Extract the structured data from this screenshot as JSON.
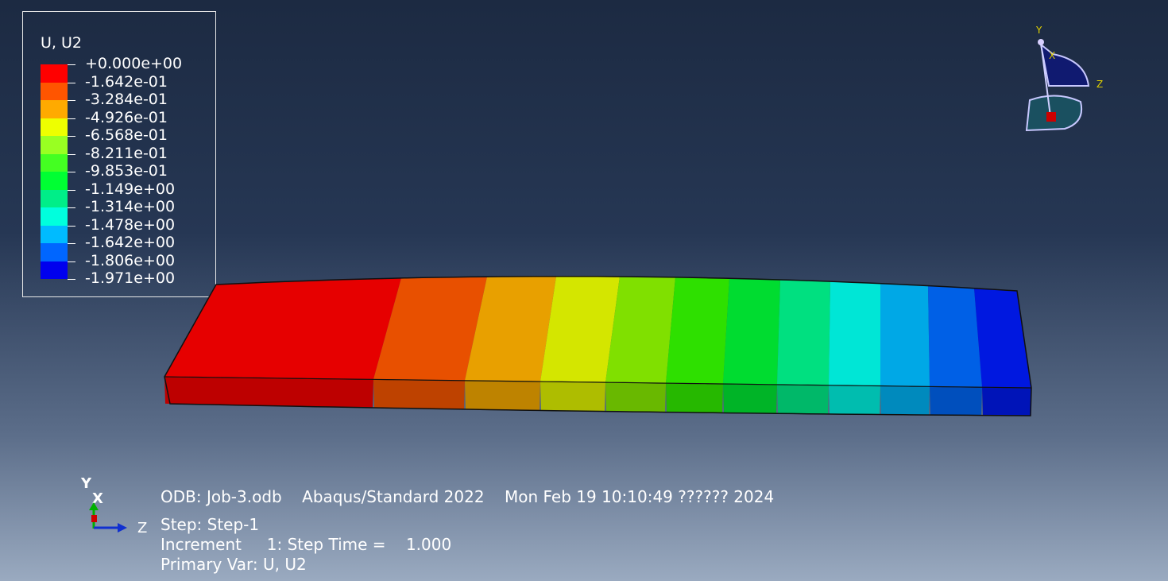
{
  "legend": {
    "title": "U, U2",
    "entries": [
      {
        "label": "+0.000e+00",
        "color": "#ff0000"
      },
      {
        "label": "-1.642e-01",
        "color": "#ff5500"
      },
      {
        "label": "-3.284e-01",
        "color": "#ffaa00"
      },
      {
        "label": "-4.926e-01",
        "color": "#eeff00"
      },
      {
        "label": "-6.568e-01",
        "color": "#99ff22"
      },
      {
        "label": "-8.211e-01",
        "color": "#44ff22"
      },
      {
        "label": "-9.853e-01",
        "color": "#00ff33"
      },
      {
        "label": "-1.149e+00",
        "color": "#00ee88"
      },
      {
        "label": "-1.314e+00",
        "color": "#00ffdd"
      },
      {
        "label": "-1.478e+00",
        "color": "#00bbff"
      },
      {
        "label": "-1.642e+00",
        "color": "#0066ff"
      },
      {
        "label": "-1.806e+00",
        "color": "#0022ff"
      },
      {
        "label": "-1.971e+00",
        "color": ""
      }
    ],
    "bottom_color": "#0000ee"
  },
  "beam": {
    "band_colors": [
      "#e60000",
      "#e85000",
      "#e8a000",
      "#d4e600",
      "#80e000",
      "#2ee000",
      "#00dc30",
      "#00e080",
      "#00e6d6",
      "#00a8e6",
      "#0060e6",
      "#0018e0"
    ]
  },
  "triad_top": {
    "y": "Y",
    "x": "X",
    "z": "Z"
  },
  "triad_bottom": {
    "y": "Y",
    "x": "X",
    "z": "Z"
  },
  "info": {
    "line1": "ODB: Job-3.odb    Abaqus/Standard 2022    Mon Feb 19 10:10:49 ?????? 2024",
    "line2": "Step: Step-1",
    "line3": "Increment     1: Step Time =    1.000",
    "line4": "Primary Var: U, U2"
  }
}
